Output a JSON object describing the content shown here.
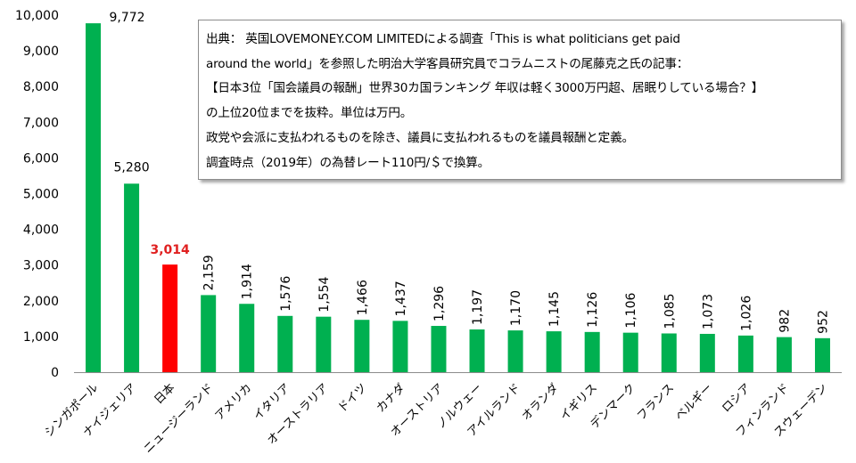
{
  "chart_data": {
    "type": "bar",
    "categories": [
      "シンガポール",
      "ナイジェリア",
      "日本",
      "ニュージーランド",
      "アメリカ",
      "イタリア",
      "オーストラリア",
      "ドイツ",
      "カナダ",
      "オーストリア",
      "ノルウェー",
      "アイルランド",
      "オランダ",
      "イギリス",
      "デンマーク",
      "フランス",
      "ベルギー",
      "ロシア",
      "フィンランド",
      "スウェーデン"
    ],
    "values": [
      9772,
      5280,
      3014,
      2159,
      1914,
      1576,
      1554,
      1466,
      1437,
      1296,
      1197,
      1170,
      1145,
      1126,
      1106,
      1085,
      1073,
      1026,
      982,
      952
    ],
    "value_labels": [
      "9,772",
      "5,280",
      "3,014",
      "2,159",
      "1,914",
      "1,576",
      "1,554",
      "1,466",
      "1,437",
      "1,296",
      "1,197",
      "1,170",
      "1,145",
      "1,126",
      "1,106",
      "1,085",
      "1,073",
      "1,026",
      "982",
      "952"
    ],
    "highlight_index": 2,
    "ylim": [
      0,
      10000
    ],
    "yticks": [
      0,
      1000,
      2000,
      3000,
      4000,
      5000,
      6000,
      7000,
      8000,
      9000,
      10000
    ],
    "ytick_labels": [
      "0",
      "1,000",
      "2,000",
      "3,000",
      "4,000",
      "5,000",
      "6,000",
      "7,000",
      "8,000",
      "9,000",
      "10,000"
    ],
    "grid": false,
    "title": "",
    "xlabel": "",
    "ylabel": "",
    "colors": {
      "bar": "#00b050",
      "highlight": "#ff0000",
      "highlight_label": "#e02020"
    }
  },
  "note": {
    "lines": [
      "出典： 英国LOVEMONEY.COM LIMITEDによる調査「This is what politicians get paid",
      "around the world」を参照した明治大学客員研究員でコラムニストの尾藤克之氏の記事：",
      "【日本3位「国会議員の報酬」世界30カ国ランキング 年収は軽く3000万円超、居眠りしている場合？】",
      "の上位20位までを抜粋。単位は万円。",
      "政党や会派に支払われるものを除き、議員に支払われるものを議員報酬と定義。",
      "調査時点（2019年）の為替レート110円/＄で換算。"
    ]
  }
}
